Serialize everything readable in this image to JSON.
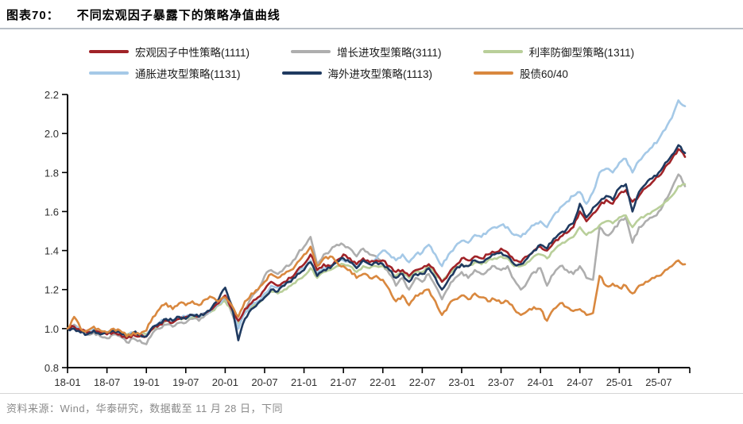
{
  "header": {
    "figure_label": "图表70：",
    "title": "不同宏观因子暴露下的策略净值曲线"
  },
  "footer": {
    "source": "资料来源：Wind，华泰研究，数据截至 11 月 28 日，下同"
  },
  "chart_data": {
    "type": "line",
    "title": "不同宏观因子暴露下的策略净值曲线",
    "xlabel": "",
    "ylabel": "",
    "ylim": [
      0.8,
      2.2
    ],
    "y_ticks": [
      0.8,
      1.0,
      1.2,
      1.4,
      1.6,
      1.8,
      2.0,
      2.2
    ],
    "grid": false,
    "legend_position": "top",
    "x_start_month": "2018-01",
    "x_end_month": "2025-11",
    "x_tick_labels": [
      "18-01",
      "18-07",
      "19-01",
      "19-07",
      "20-01",
      "20-07",
      "21-01",
      "21-07",
      "22-01",
      "22-07",
      "23-01",
      "23-07",
      "24-01",
      "24-07",
      "25-01",
      "25-07"
    ],
    "x_tick_every_n_points": 6,
    "series": [
      {
        "name": "宏观因子中性策略(1111)",
        "color": "#a02328",
        "values": [
          1.0,
          1.01,
          0.99,
          0.98,
          0.99,
          0.98,
          0.97,
          0.98,
          0.97,
          0.95,
          0.97,
          0.96,
          0.96,
          1.0,
          1.02,
          1.04,
          1.03,
          1.05,
          1.06,
          1.07,
          1.06,
          1.08,
          1.1,
          1.13,
          1.17,
          1.1,
          1.04,
          1.1,
          1.13,
          1.16,
          1.2,
          1.24,
          1.22,
          1.24,
          1.26,
          1.3,
          1.33,
          1.38,
          1.3,
          1.33,
          1.32,
          1.35,
          1.38,
          1.36,
          1.33,
          1.36,
          1.34,
          1.35,
          1.35,
          1.32,
          1.29,
          1.3,
          1.27,
          1.3,
          1.31,
          1.33,
          1.29,
          1.24,
          1.28,
          1.32,
          1.36,
          1.35,
          1.37,
          1.36,
          1.38,
          1.39,
          1.41,
          1.39,
          1.35,
          1.34,
          1.37,
          1.4,
          1.42,
          1.4,
          1.44,
          1.47,
          1.49,
          1.52,
          1.6,
          1.55,
          1.59,
          1.63,
          1.66,
          1.64,
          1.69,
          1.71,
          1.65,
          1.68,
          1.72,
          1.75,
          1.78,
          1.83,
          1.87,
          1.92,
          1.88
        ]
      },
      {
        "name": "增长进攻型策略(3111)",
        "color": "#aeaeae",
        "values": [
          1.0,
          1.02,
          0.99,
          0.97,
          0.98,
          0.96,
          0.95,
          0.97,
          0.96,
          0.93,
          0.95,
          0.94,
          0.92,
          0.98,
          1.0,
          1.02,
          1.01,
          1.03,
          1.03,
          1.05,
          1.04,
          1.07,
          1.09,
          1.12,
          1.15,
          1.08,
          1.0,
          1.1,
          1.16,
          1.2,
          1.27,
          1.3,
          1.28,
          1.31,
          1.33,
          1.38,
          1.42,
          1.47,
          1.33,
          1.38,
          1.4,
          1.43,
          1.43,
          1.41,
          1.37,
          1.41,
          1.38,
          1.37,
          1.33,
          1.28,
          1.22,
          1.26,
          1.2,
          1.26,
          1.24,
          1.28,
          1.22,
          1.15,
          1.21,
          1.26,
          1.29,
          1.26,
          1.3,
          1.28,
          1.3,
          1.32,
          1.3,
          1.32,
          1.25,
          1.2,
          1.24,
          1.29,
          1.31,
          1.22,
          1.28,
          1.32,
          1.3,
          1.28,
          1.32,
          1.26,
          1.25,
          1.52,
          1.48,
          1.5,
          1.55,
          1.57,
          1.44,
          1.52,
          1.55,
          1.57,
          1.6,
          1.66,
          1.72,
          1.79,
          1.73
        ]
      },
      {
        "name": "利率防御型策略(1311)",
        "color": "#b9cf9a",
        "values": [
          1.0,
          1.01,
          0.99,
          0.98,
          0.99,
          0.98,
          0.98,
          0.99,
          0.98,
          0.97,
          0.98,
          0.97,
          0.97,
          1.0,
          1.02,
          1.04,
          1.03,
          1.05,
          1.05,
          1.06,
          1.06,
          1.08,
          1.09,
          1.12,
          1.14,
          1.09,
          1.03,
          1.08,
          1.11,
          1.13,
          1.16,
          1.19,
          1.18,
          1.2,
          1.22,
          1.25,
          1.27,
          1.31,
          1.26,
          1.29,
          1.3,
          1.32,
          1.33,
          1.32,
          1.29,
          1.32,
          1.31,
          1.32,
          1.32,
          1.3,
          1.27,
          1.29,
          1.26,
          1.29,
          1.29,
          1.32,
          1.28,
          1.24,
          1.28,
          1.31,
          1.33,
          1.32,
          1.34,
          1.33,
          1.35,
          1.36,
          1.37,
          1.36,
          1.32,
          1.32,
          1.34,
          1.37,
          1.38,
          1.36,
          1.4,
          1.43,
          1.45,
          1.47,
          1.52,
          1.48,
          1.5,
          1.53,
          1.55,
          1.54,
          1.57,
          1.58,
          1.52,
          1.56,
          1.58,
          1.6,
          1.62,
          1.65,
          1.68,
          1.73,
          1.74
        ]
      },
      {
        "name": "通胀进攻型策略(1131)",
        "color": "#a5c9e7",
        "values": [
          1.0,
          1.01,
          0.99,
          0.98,
          1.0,
          0.98,
          0.98,
          0.99,
          0.98,
          0.96,
          0.98,
          0.97,
          0.96,
          1.01,
          1.03,
          1.05,
          1.04,
          1.06,
          1.06,
          1.07,
          1.06,
          1.08,
          1.1,
          1.13,
          1.16,
          1.1,
          1.0,
          1.08,
          1.12,
          1.14,
          1.18,
          1.22,
          1.21,
          1.23,
          1.25,
          1.29,
          1.31,
          1.35,
          1.28,
          1.31,
          1.32,
          1.34,
          1.35,
          1.34,
          1.31,
          1.35,
          1.34,
          1.36,
          1.4,
          1.38,
          1.35,
          1.38,
          1.34,
          1.38,
          1.39,
          1.43,
          1.38,
          1.32,
          1.38,
          1.42,
          1.45,
          1.44,
          1.48,
          1.47,
          1.5,
          1.52,
          1.53,
          1.52,
          1.48,
          1.47,
          1.5,
          1.53,
          1.55,
          1.52,
          1.58,
          1.62,
          1.65,
          1.68,
          1.7,
          1.64,
          1.7,
          1.8,
          1.82,
          1.8,
          1.85,
          1.87,
          1.8,
          1.86,
          1.9,
          1.93,
          1.97,
          2.02,
          2.08,
          2.17,
          2.14
        ]
      },
      {
        "name": "海外进攻型策略(1113)",
        "color": "#1f3a60",
        "values": [
          1.0,
          1.0,
          0.98,
          0.97,
          0.99,
          0.97,
          0.98,
          0.99,
          0.98,
          0.96,
          0.98,
          0.97,
          0.96,
          1.01,
          1.03,
          1.05,
          1.04,
          1.06,
          1.05,
          1.07,
          1.06,
          1.08,
          1.11,
          1.15,
          1.21,
          1.12,
          0.94,
          1.05,
          1.1,
          1.13,
          1.16,
          1.2,
          1.19,
          1.22,
          1.24,
          1.28,
          1.3,
          1.34,
          1.27,
          1.3,
          1.31,
          1.34,
          1.36,
          1.34,
          1.31,
          1.35,
          1.33,
          1.34,
          1.33,
          1.3,
          1.26,
          1.28,
          1.24,
          1.28,
          1.28,
          1.31,
          1.26,
          1.2,
          1.25,
          1.3,
          1.33,
          1.32,
          1.35,
          1.34,
          1.36,
          1.38,
          1.39,
          1.37,
          1.33,
          1.33,
          1.36,
          1.4,
          1.43,
          1.41,
          1.46,
          1.49,
          1.51,
          1.54,
          1.64,
          1.57,
          1.62,
          1.65,
          1.68,
          1.66,
          1.72,
          1.74,
          1.6,
          1.7,
          1.74,
          1.77,
          1.8,
          1.85,
          1.89,
          1.94,
          1.9
        ]
      },
      {
        "name": "股债60/40",
        "color": "#d9883f",
        "values": [
          1.0,
          1.06,
          1.0,
          0.99,
          1.01,
          0.99,
          0.98,
          1.0,
          0.99,
          0.96,
          0.98,
          0.97,
          0.99,
          1.06,
          1.1,
          1.13,
          1.1,
          1.13,
          1.12,
          1.14,
          1.12,
          1.15,
          1.16,
          1.14,
          1.16,
          1.12,
          1.06,
          1.14,
          1.18,
          1.2,
          1.24,
          1.28,
          1.26,
          1.28,
          1.3,
          1.34,
          1.38,
          1.42,
          1.32,
          1.36,
          1.37,
          1.34,
          1.32,
          1.3,
          1.26,
          1.28,
          1.26,
          1.27,
          1.25,
          1.2,
          1.14,
          1.17,
          1.12,
          1.17,
          1.18,
          1.2,
          1.14,
          1.07,
          1.12,
          1.15,
          1.17,
          1.15,
          1.18,
          1.16,
          1.14,
          1.15,
          1.13,
          1.14,
          1.1,
          1.07,
          1.09,
          1.11,
          1.1,
          1.04,
          1.1,
          1.13,
          1.11,
          1.09,
          1.1,
          1.07,
          1.08,
          1.27,
          1.22,
          1.23,
          1.21,
          1.22,
          1.18,
          1.22,
          1.24,
          1.26,
          1.27,
          1.3,
          1.32,
          1.35,
          1.33
        ]
      }
    ],
    "legend_rows": [
      [
        0,
        1,
        2
      ],
      [
        3,
        4,
        5
      ]
    ]
  }
}
